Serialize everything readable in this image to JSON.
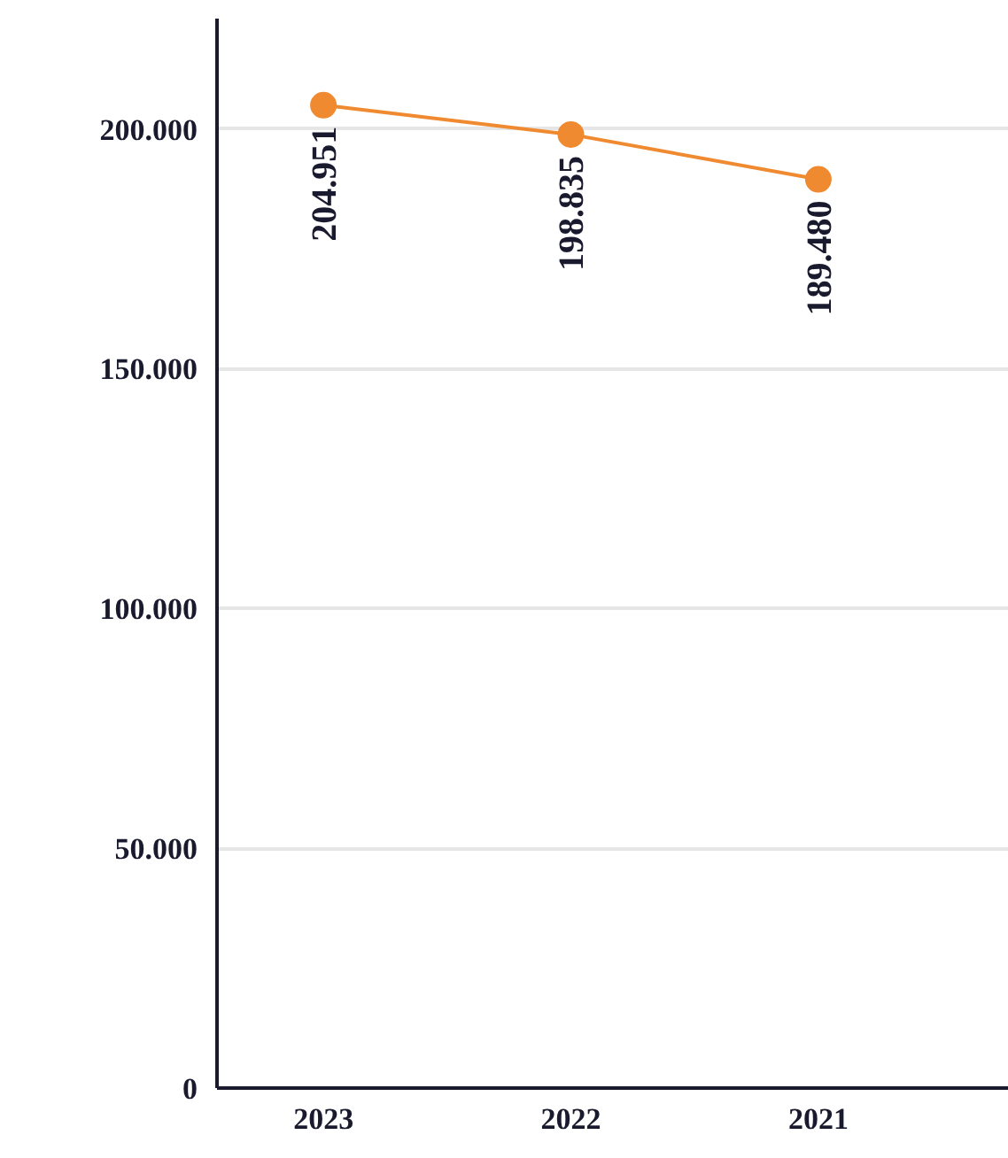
{
  "chart_data": {
    "type": "line",
    "categories": [
      "2023",
      "2022",
      "2021"
    ],
    "series": [
      {
        "color": "#f08a30",
        "values": [
          204951,
          198835,
          189480
        ]
      }
    ],
    "value_labels": [
      "204.951",
      "198.835",
      "189.480"
    ],
    "ylim": [
      0,
      223000
    ],
    "yticks": [
      {
        "value": 0,
        "label": "0"
      },
      {
        "value": 50000,
        "label": "50.000"
      },
      {
        "value": 100000,
        "label": "100.000"
      },
      {
        "value": 150000,
        "label": "150.000"
      },
      {
        "value": 200000,
        "label": "200.000"
      }
    ],
    "grid": "y",
    "marker": "circle",
    "line_style": "solid"
  }
}
